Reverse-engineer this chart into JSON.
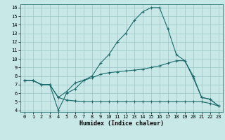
{
  "title": "",
  "xlabel": "Humidex (Indice chaleur)",
  "background_color": "#c8e8e8",
  "line_color": "#1a6b6b",
  "grid_color": "#9ac8c8",
  "xlim": [
    -0.5,
    23.5
  ],
  "ylim": [
    3.8,
    16.4
  ],
  "yticks": [
    4,
    5,
    6,
    7,
    8,
    9,
    10,
    11,
    12,
    13,
    14,
    15,
    16
  ],
  "xticks": [
    0,
    1,
    2,
    3,
    4,
    5,
    6,
    7,
    8,
    9,
    10,
    11,
    12,
    13,
    14,
    15,
    16,
    17,
    18,
    19,
    20,
    21,
    22,
    23
  ],
  "line1_x": [
    0,
    1,
    2,
    3,
    4,
    5,
    6,
    7,
    8,
    9,
    10,
    11,
    12,
    13,
    14,
    15,
    16,
    17,
    18,
    19,
    20,
    21,
    22,
    23
  ],
  "line1_y": [
    7.5,
    7.5,
    7.0,
    7.0,
    4.0,
    6.0,
    6.5,
    7.5,
    8.0,
    9.5,
    10.5,
    12.0,
    13.0,
    14.5,
    15.5,
    16.0,
    16.0,
    13.5,
    10.5,
    9.8,
    8.0,
    5.5,
    5.3,
    4.5
  ],
  "line2_x": [
    0,
    1,
    2,
    3,
    4,
    5,
    6,
    7,
    8,
    9,
    10,
    11,
    12,
    13,
    14,
    15,
    16,
    17,
    18,
    19,
    20,
    21,
    22,
    23
  ],
  "line2_y": [
    7.5,
    7.5,
    7.0,
    7.0,
    5.5,
    6.2,
    7.2,
    7.5,
    7.8,
    8.2,
    8.4,
    8.5,
    8.6,
    8.7,
    8.8,
    9.0,
    9.2,
    9.5,
    9.8,
    9.8,
    7.8,
    5.5,
    5.3,
    4.5
  ],
  "line3_x": [
    0,
    1,
    2,
    3,
    4,
    5,
    6,
    7,
    8,
    9,
    10,
    11,
    12,
    13,
    14,
    15,
    16,
    17,
    18,
    19,
    20,
    21,
    22,
    23
  ],
  "line3_y": [
    7.5,
    7.5,
    7.0,
    7.0,
    5.5,
    5.2,
    5.1,
    5.0,
    5.0,
    5.0,
    5.0,
    5.0,
    5.0,
    5.0,
    5.0,
    5.0,
    5.0,
    5.0,
    5.0,
    5.0,
    5.0,
    5.0,
    4.8,
    4.5
  ]
}
